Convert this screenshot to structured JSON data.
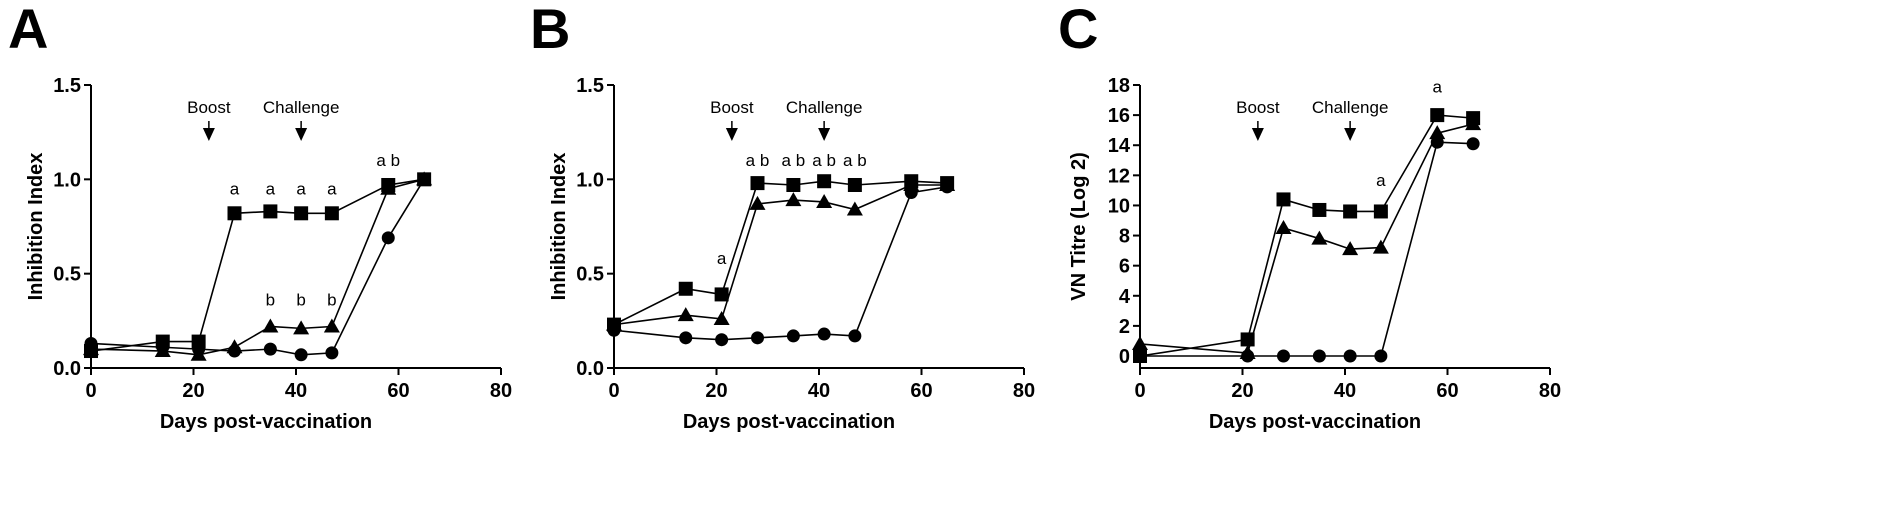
{
  "chart_data": [
    {
      "panel": "A",
      "type": "line",
      "xlabel": "Days post-vaccination",
      "ylabel": "Inhibition Index",
      "xlim": [
        0,
        80
      ],
      "ylim": [
        0,
        1.5
      ],
      "xticks": [
        "0",
        "20",
        "40",
        "60",
        "80"
      ],
      "yticks": [
        "0.0",
        "0.5",
        "1.0",
        "1.5"
      ],
      "events": [
        {
          "label": "Boost",
          "x": 23
        },
        {
          "label": "Challenge",
          "x": 41
        }
      ],
      "series": [
        {
          "marker": "square",
          "x": [
            0,
            14,
            21,
            28,
            35,
            41,
            47,
            58,
            65
          ],
          "y": [
            0.09,
            0.14,
            0.14,
            0.82,
            0.83,
            0.82,
            0.82,
            0.97,
            1.0
          ]
        },
        {
          "marker": "triangle",
          "x": [
            0,
            14,
            21,
            28,
            35,
            41,
            47,
            58,
            65
          ],
          "y": [
            0.1,
            0.09,
            0.07,
            0.11,
            0.22,
            0.21,
            0.22,
            0.95,
            1.0
          ]
        },
        {
          "marker": "circle",
          "x": [
            0,
            14,
            21,
            28,
            35,
            41,
            47,
            58,
            65
          ],
          "y": [
            0.13,
            0.11,
            0.1,
            0.09,
            0.1,
            0.07,
            0.08,
            0.69,
            1.0
          ]
        }
      ],
      "annotations": [
        {
          "text": "a",
          "x": 28,
          "y": 0.92
        },
        {
          "text": "a",
          "x": 35,
          "y": 0.92
        },
        {
          "text": "a",
          "x": 41,
          "y": 0.92
        },
        {
          "text": "a",
          "x": 47,
          "y": 0.92
        },
        {
          "text": "b",
          "x": 35,
          "y": 0.33
        },
        {
          "text": "b",
          "x": 41,
          "y": 0.33
        },
        {
          "text": "b",
          "x": 47,
          "y": 0.33
        },
        {
          "text": "a b",
          "x": 58,
          "y": 1.07
        }
      ]
    },
    {
      "panel": "B",
      "type": "line",
      "xlabel": "Days post-vaccination",
      "ylabel": "Inhibition Index",
      "xlim": [
        0,
        80
      ],
      "ylim": [
        0,
        1.5
      ],
      "xticks": [
        "0",
        "20",
        "40",
        "60",
        "80"
      ],
      "yticks": [
        "0.0",
        "0.5",
        "1.0",
        "1.5"
      ],
      "events": [
        {
          "label": "Boost",
          "x": 23
        },
        {
          "label": "Challenge",
          "x": 41
        }
      ],
      "series": [
        {
          "marker": "square",
          "x": [
            0,
            14,
            21,
            28,
            35,
            41,
            47,
            58,
            65
          ],
          "y": [
            0.23,
            0.42,
            0.39,
            0.98,
            0.97,
            0.99,
            0.97,
            0.99,
            0.98
          ]
        },
        {
          "marker": "triangle",
          "x": [
            0,
            14,
            21,
            28,
            35,
            41,
            47,
            58,
            65
          ],
          "y": [
            0.23,
            0.28,
            0.26,
            0.87,
            0.89,
            0.88,
            0.84,
            0.97,
            0.97
          ]
        },
        {
          "marker": "circle",
          "x": [
            0,
            14,
            21,
            28,
            35,
            41,
            47,
            58,
            65
          ],
          "y": [
            0.2,
            0.16,
            0.15,
            0.16,
            0.17,
            0.18,
            0.17,
            0.93,
            0.96
          ]
        }
      ],
      "annotations": [
        {
          "text": "a",
          "x": 21,
          "y": 0.55
        },
        {
          "text": "a b",
          "x": 28,
          "y": 1.07
        },
        {
          "text": "a b",
          "x": 35,
          "y": 1.07
        },
        {
          "text": "a b",
          "x": 41,
          "y": 1.07
        },
        {
          "text": "a b",
          "x": 47,
          "y": 1.07
        }
      ]
    },
    {
      "panel": "C",
      "type": "line",
      "xlabel": "Days post-vaccination",
      "ylabel": "VN Titre (Log 2)",
      "xlim": [
        0,
        80
      ],
      "ylim": [
        0,
        18
      ],
      "xticks": [
        "0",
        "20",
        "40",
        "60",
        "80"
      ],
      "yticks": [
        "0",
        "2",
        "4",
        "6",
        "8",
        "10",
        "12",
        "14",
        "16",
        "18"
      ],
      "events": [
        {
          "label": "Boost",
          "x": 23
        },
        {
          "label": "Challenge",
          "x": 41
        }
      ],
      "series": [
        {
          "marker": "square",
          "x": [
            0,
            21,
            28,
            35,
            41,
            47,
            58,
            65
          ],
          "y": [
            0,
            1.1,
            10.4,
            9.7,
            9.6,
            9.6,
            16.0,
            15.8
          ]
        },
        {
          "marker": "triangle",
          "x": [
            0,
            21,
            28,
            35,
            41,
            47,
            58,
            65
          ],
          "y": [
            0.8,
            0.2,
            8.5,
            7.8,
            7.1,
            7.2,
            14.8,
            15.4
          ]
        },
        {
          "marker": "circle",
          "x": [
            0,
            21,
            28,
            35,
            41,
            47,
            58,
            65
          ],
          "y": [
            0,
            0,
            0,
            0,
            0,
            0,
            14.2,
            14.1
          ]
        }
      ],
      "annotations": [
        {
          "text": "a",
          "x": 47,
          "y": 11.3
        },
        {
          "text": "a",
          "x": 58,
          "y": 17.5
        }
      ]
    }
  ]
}
